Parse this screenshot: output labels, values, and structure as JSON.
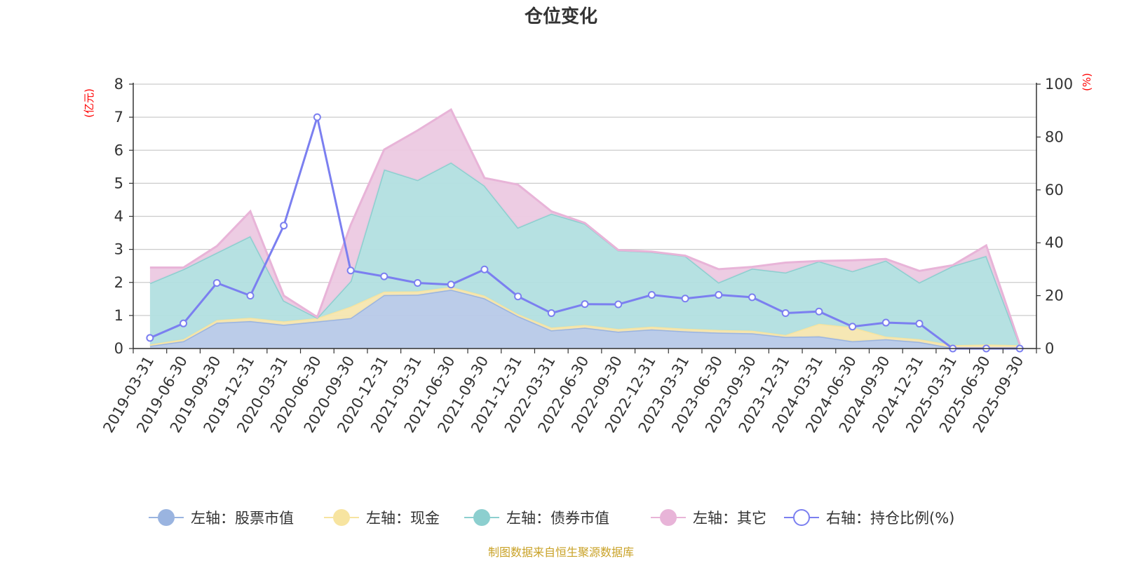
{
  "chart_data": {
    "type": "area",
    "title": "仓位变化",
    "source": "制图数据来自恒生聚源数据库",
    "left_axis": {
      "unit": "(亿元)",
      "ylim": [
        0,
        8
      ],
      "ticks": [
        "0",
        "1",
        "2",
        "3",
        "4",
        "5",
        "6",
        "7",
        "8"
      ]
    },
    "right_axis": {
      "unit": "(%)",
      "ylim": [
        0,
        100
      ],
      "ticks": [
        "0",
        "20",
        "40",
        "60",
        "80",
        "100"
      ]
    },
    "categories": [
      "2019-03-31",
      "2019-06-30",
      "2019-09-30",
      "2019-12-31",
      "2020-03-31",
      "2020-06-30",
      "2020-09-30",
      "2020-12-31",
      "2021-03-31",
      "2021-06-30",
      "2021-09-30",
      "2021-12-31",
      "2022-03-31",
      "2022-06-30",
      "2022-09-30",
      "2022-12-31",
      "2023-03-31",
      "2023-06-30",
      "2023-09-30",
      "2023-12-31",
      "2024-03-31",
      "2024-06-30",
      "2024-09-30",
      "2024-12-31",
      "2025-03-31",
      "2025-06-30",
      "2025-09-30"
    ],
    "series": [
      {
        "name": "左轴：股票市值",
        "axis": "left",
        "color": "#9ab4e0",
        "fill": "#b7c9e8",
        "values": [
          0.08,
          0.22,
          0.78,
          0.83,
          0.72,
          0.82,
          0.92,
          1.62,
          1.63,
          1.78,
          1.52,
          0.98,
          0.55,
          0.63,
          0.51,
          0.58,
          0.52,
          0.48,
          0.46,
          0.35,
          0.37,
          0.22,
          0.28,
          0.2,
          0.02,
          0.02,
          0.02
        ]
      },
      {
        "name": "左轴：现金",
        "axis": "left",
        "color": "#f7e4a0",
        "fill": "#f5e6b0",
        "values": [
          0.04,
          0.06,
          0.08,
          0.1,
          0.1,
          0.1,
          0.35,
          0.1,
          0.1,
          0.08,
          0.08,
          0.06,
          0.08,
          0.08,
          0.08,
          0.08,
          0.08,
          0.08,
          0.08,
          0.06,
          0.38,
          0.42,
          0.08,
          0.08,
          0.08,
          0.1,
          0.08
        ]
      },
      {
        "name": "左轴：债券市值",
        "axis": "left",
        "color": "#8ccfcf",
        "fill": "#b2dfe0",
        "values": [
          1.86,
          2.12,
          2.04,
          2.47,
          0.63,
          0.01,
          0.77,
          3.7,
          3.37,
          3.77,
          3.33,
          2.62,
          3.45,
          3.07,
          2.38,
          2.26,
          2.2,
          1.44,
          1.88,
          1.89,
          1.89,
          1.7,
          2.3,
          1.72,
          2.4,
          2.68,
          0.02
        ]
      },
      {
        "name": "左轴：其它",
        "axis": "left",
        "color": "#e8b4d8",
        "fill": "#ecc9e2",
        "values": [
          0.47,
          0.05,
          0.2,
          0.75,
          0.15,
          0.02,
          1.7,
          0.6,
          1.5,
          1.6,
          0.23,
          1.3,
          0.07,
          0.02,
          0.01,
          0.01,
          0.01,
          0.4,
          0.05,
          0.3,
          0.01,
          0.33,
          0.05,
          0.35,
          0.02,
          0.32,
          0.01
        ]
      },
      {
        "name": "右轴：持仓比例(%)",
        "axis": "right",
        "color": "#7b7ff0",
        "values": [
          4.0,
          9.5,
          24.8,
          20.0,
          46.5,
          87.5,
          29.5,
          27.3,
          24.8,
          24.2,
          29.9,
          19.7,
          13.4,
          16.8,
          16.7,
          20.3,
          18.9,
          20.3,
          19.4,
          13.4,
          14.0,
          8.3,
          9.8,
          9.4,
          0,
          0,
          0
        ]
      }
    ]
  }
}
